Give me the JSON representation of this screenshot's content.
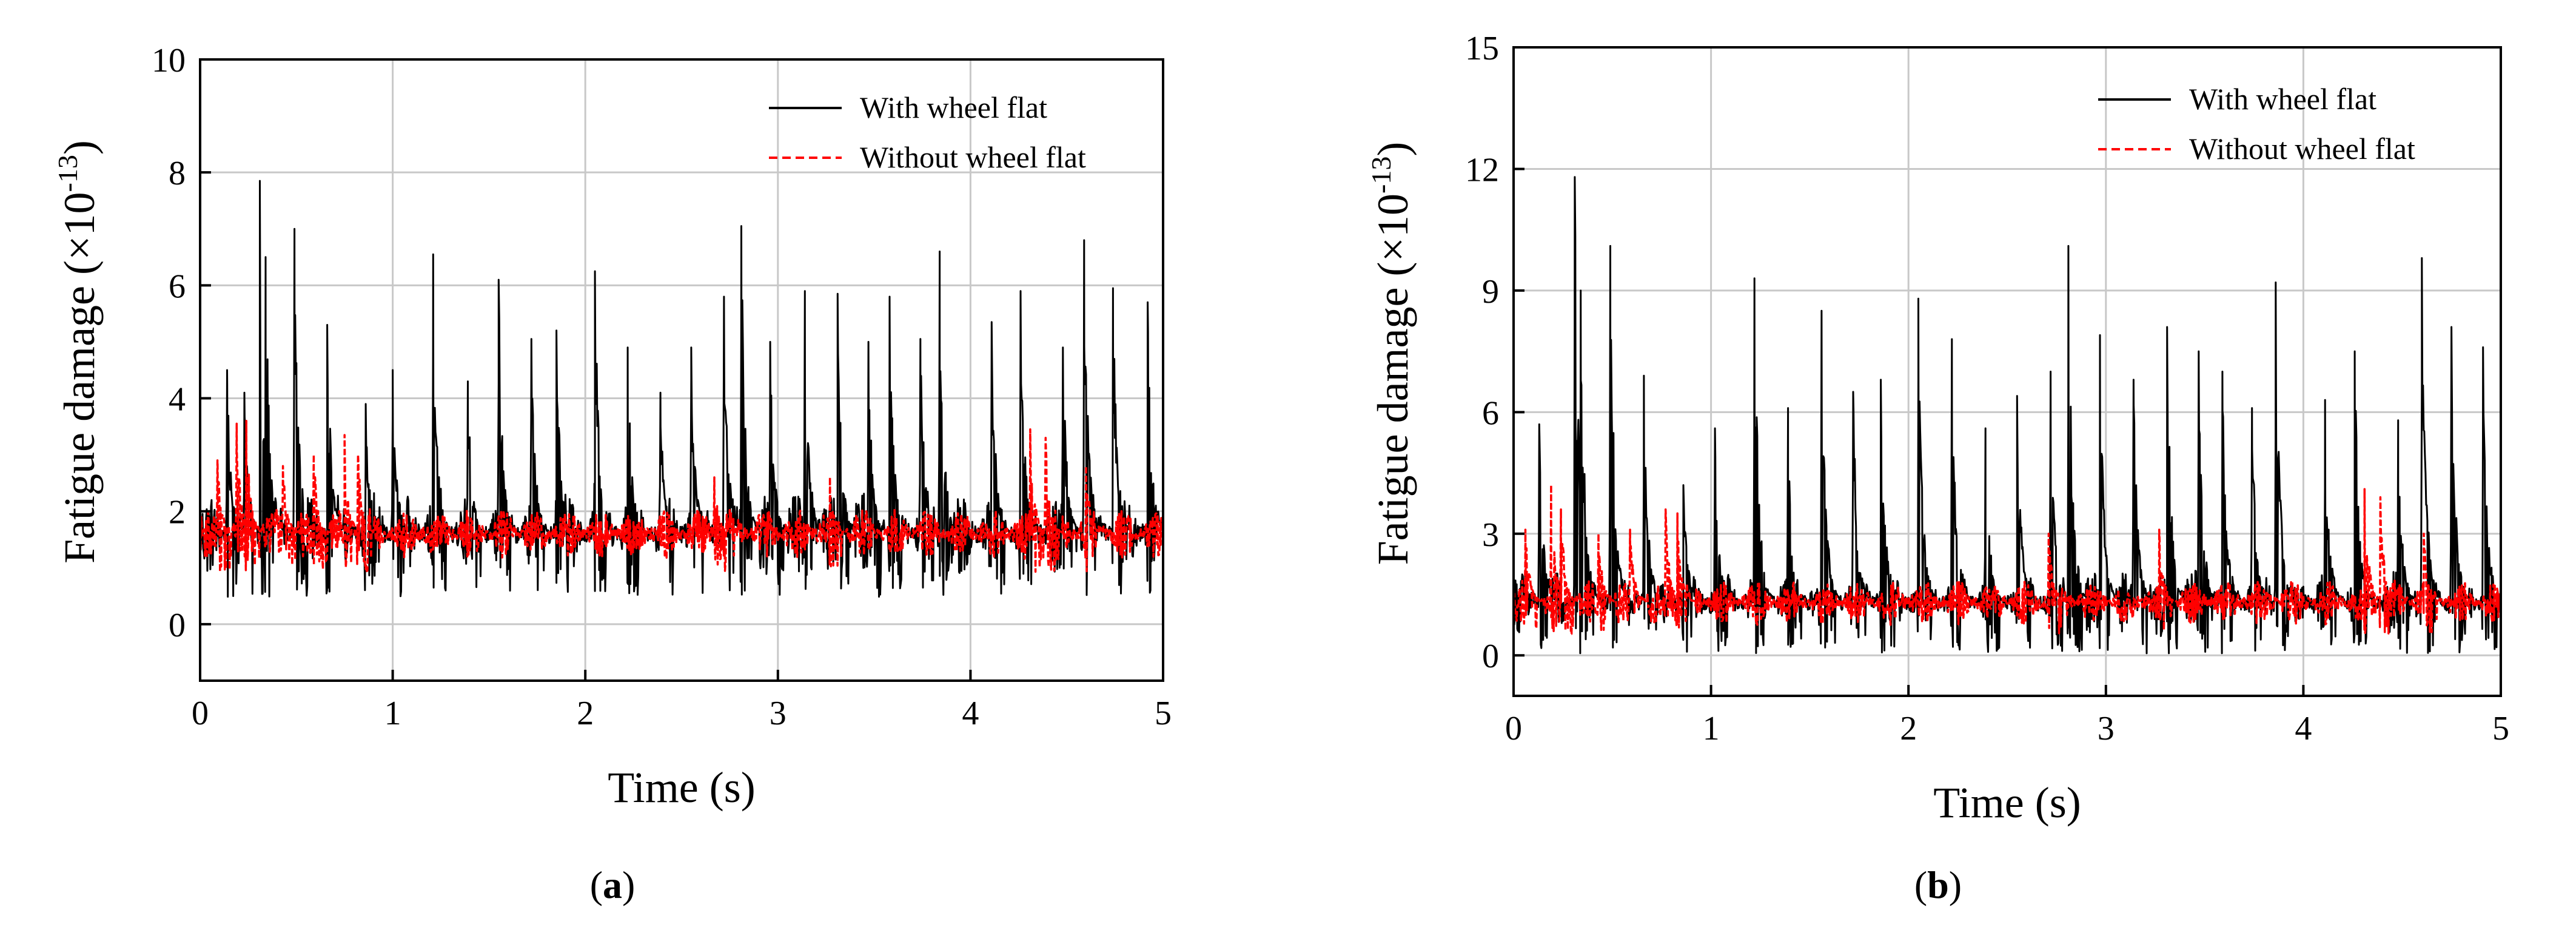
{
  "colors": {
    "with": "#000000",
    "without": "#ff0000",
    "grid": "#c8c8c8",
    "axis": "#000000"
  },
  "chart_data": [
    {
      "type": "line",
      "caption": "a",
      "xlabel": "Time (s)",
      "ylabel": "Fatigue damage (×10",
      "ylabel_exp": "-13",
      "ylabel_close": ")",
      "xlim": [
        0,
        5
      ],
      "ylim": [
        -1,
        10
      ],
      "xticks": [
        0,
        1,
        2,
        3,
        4,
        5
      ],
      "xtick_labels": [
        "0",
        "1",
        "2",
        "3",
        "4",
        "5"
      ],
      "yticks": [
        0,
        2,
        4,
        6,
        8,
        10
      ],
      "ytick_labels": [
        "0",
        "2",
        "4",
        "6",
        "8",
        "10"
      ],
      "grid": true,
      "legend_position": "top-right",
      "series": [
        {
          "name": "With wheel flat",
          "style": "solid",
          "baseline": 1.6,
          "spread": 0.75,
          "peaks": [
            [
              0.14,
              4.5
            ],
            [
              0.23,
              4.1
            ],
            [
              0.31,
              7.85
            ],
            [
              0.34,
              6.5
            ],
            [
              0.49,
              7.0
            ],
            [
              0.66,
              5.3
            ],
            [
              0.86,
              3.9
            ],
            [
              1.0,
              4.5
            ],
            [
              1.21,
              6.55
            ],
            [
              1.39,
              4.3
            ],
            [
              1.55,
              6.1
            ],
            [
              1.72,
              5.05
            ],
            [
              1.85,
              5.2
            ],
            [
              2.05,
              6.25
            ],
            [
              2.22,
              4.9
            ],
            [
              2.39,
              4.1
            ],
            [
              2.55,
              4.9
            ],
            [
              2.72,
              5.8
            ],
            [
              2.81,
              7.05
            ],
            [
              2.96,
              5.0
            ],
            [
              3.14,
              5.9
            ],
            [
              3.31,
              5.85
            ],
            [
              3.47,
              5.0
            ],
            [
              3.58,
              5.8
            ],
            [
              3.74,
              5.05
            ],
            [
              3.84,
              6.6
            ],
            [
              4.11,
              5.35
            ],
            [
              4.26,
              5.9
            ],
            [
              4.48,
              4.9
            ],
            [
              4.59,
              6.8
            ],
            [
              4.74,
              5.95
            ],
            [
              4.92,
              5.7
            ]
          ]
        },
        {
          "name": "Without wheel flat",
          "style": "dashed",
          "baseline": 1.6,
          "spread": 0.45,
          "peaks": [
            [
              0.09,
              2.9
            ],
            [
              0.19,
              3.55
            ],
            [
              0.24,
              3.6
            ],
            [
              0.43,
              2.8
            ],
            [
              0.59,
              3.0
            ],
            [
              0.75,
              3.35
            ],
            [
              0.82,
              3.0
            ],
            [
              2.67,
              2.6
            ],
            [
              3.27,
              2.6
            ],
            [
              4.31,
              3.45
            ],
            [
              4.39,
              3.3
            ],
            [
              4.6,
              2.8
            ]
          ]
        }
      ]
    },
    {
      "type": "line",
      "caption": "b",
      "xlabel": "Time (s)",
      "ylabel": "Fatigue damage (×10",
      "ylabel_exp": "-13",
      "ylabel_close": ")",
      "xlim": [
        0,
        5
      ],
      "ylim": [
        -1,
        15
      ],
      "xticks": [
        0,
        1,
        2,
        3,
        4,
        5
      ],
      "xtick_labels": [
        "0",
        "1",
        "2",
        "3",
        "4",
        "5"
      ],
      "yticks": [
        0,
        3,
        6,
        9,
        12,
        15
      ],
      "ytick_labels": [
        "0",
        "3",
        "6",
        "9",
        "12",
        "15"
      ],
      "grid": true,
      "legend_position": "top-right",
      "series": [
        {
          "name": "With wheel flat",
          "style": "solid",
          "baseline": 1.3,
          "spread": 0.85,
          "peaks": [
            [
              0.13,
              5.7
            ],
            [
              0.31,
              11.8
            ],
            [
              0.34,
              9.0
            ],
            [
              0.49,
              10.1
            ],
            [
              0.66,
              6.9
            ],
            [
              0.86,
              4.2
            ],
            [
              1.02,
              5.6
            ],
            [
              1.22,
              9.3
            ],
            [
              1.39,
              6.1
            ],
            [
              1.56,
              8.5
            ],
            [
              1.72,
              6.5
            ],
            [
              1.86,
              6.8
            ],
            [
              2.05,
              8.8
            ],
            [
              2.22,
              7.8
            ],
            [
              2.39,
              5.6
            ],
            [
              2.55,
              6.4
            ],
            [
              2.72,
              7.0
            ],
            [
              2.81,
              10.1
            ],
            [
              2.97,
              7.9
            ],
            [
              3.14,
              6.8
            ],
            [
              3.31,
              8.1
            ],
            [
              3.47,
              7.5
            ],
            [
              3.59,
              7.0
            ],
            [
              3.74,
              6.1
            ],
            [
              3.86,
              9.2
            ],
            [
              4.11,
              6.3
            ],
            [
              4.26,
              7.5
            ],
            [
              4.48,
              5.8
            ],
            [
              4.6,
              9.8
            ],
            [
              4.75,
              8.1
            ],
            [
              4.91,
              7.6
            ]
          ]
        },
        {
          "name": "Without wheel flat",
          "style": "dashed",
          "baseline": 1.3,
          "spread": 0.55,
          "peaks": [
            [
              0.06,
              3.1
            ],
            [
              0.19,
              4.2
            ],
            [
              0.24,
              3.6
            ],
            [
              0.43,
              3.0
            ],
            [
              0.59,
              3.1
            ],
            [
              0.77,
              3.6
            ],
            [
              0.83,
              3.5
            ],
            [
              2.71,
              3.0
            ],
            [
              3.27,
              3.1
            ],
            [
              4.31,
              4.1
            ],
            [
              4.39,
              3.9
            ],
            [
              4.61,
              3.0
            ]
          ]
        }
      ]
    }
  ]
}
